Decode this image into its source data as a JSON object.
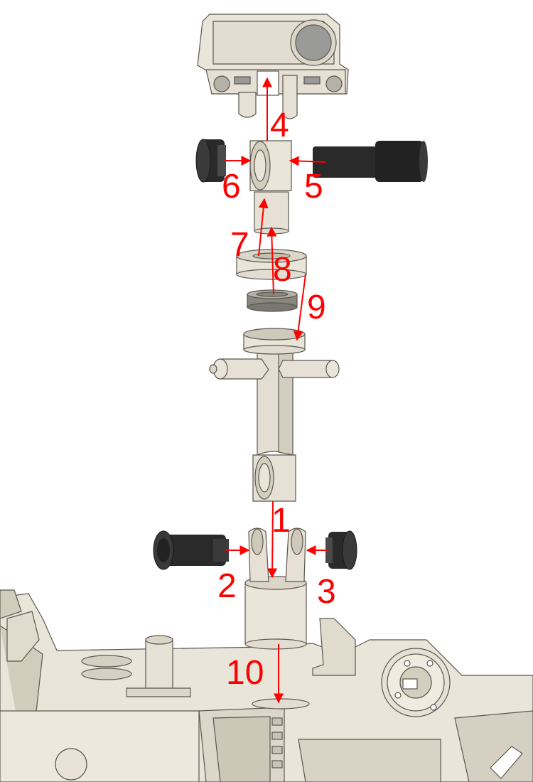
{
  "diagram": {
    "colors": {
      "part_fill": "#eae5d9",
      "part_shade": "#d2ccbd",
      "part_dark": "#b8b2a3",
      "edge": "#5a574f",
      "rubber": "#2a2a2a",
      "rubber_light": "#4a4a4a",
      "lens": "#9a9a98",
      "arrow": "#ff0000"
    },
    "parts": [
      "camera-head",
      "upper-knuckle",
      "upper-left-bushing",
      "upper-right-bushing",
      "upper-collar",
      "upper-bearing",
      "lower-bearing-ring",
      "mast-tube",
      "lower-left-bushing",
      "lower-right-bushing",
      "lower-clevis-mount",
      "rover-chassis"
    ],
    "step_labels": [
      "1",
      "2",
      "3",
      "4",
      "5",
      "6",
      "7",
      "8",
      "9",
      "10"
    ]
  }
}
